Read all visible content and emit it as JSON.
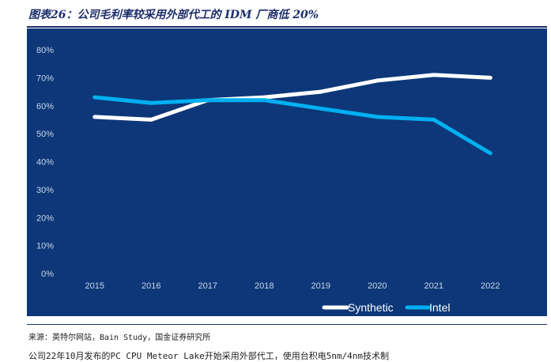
{
  "figure_title": "图表26：公司毛利率较采用外部代工的 IDM 厂商低 20%",
  "source": "来源：英特尔网站，Bain Study，国金证券研究所",
  "trailing_text": "公司22年10月发布的PC CPU Meteor Lake开始采用外部代工，使用台积电5nm/4nm技术制",
  "colors": {
    "background": "#0d3778",
    "synthetic": "#ffffff",
    "intel": "#00b0f0",
    "axis_text": "#c8d6ec"
  },
  "chart_data": {
    "type": "line",
    "categories": [
      "2015",
      "2016",
      "2017",
      "2018",
      "2019",
      "2020",
      "2021",
      "2022"
    ],
    "series": [
      {
        "name": "Synthetic",
        "values": [
          56,
          55,
          62,
          63,
          65,
          69,
          71,
          70
        ]
      },
      {
        "name": "Intel",
        "values": [
          63,
          61,
          62,
          62,
          59,
          56,
          55,
          43
        ]
      }
    ],
    "ylim": [
      0,
      80
    ],
    "y_ticks": [
      "0%",
      "10%",
      "20%",
      "30%",
      "40%",
      "50%",
      "60%",
      "70%",
      "80%"
    ],
    "grid": false,
    "legend_position": "bottom-right"
  }
}
